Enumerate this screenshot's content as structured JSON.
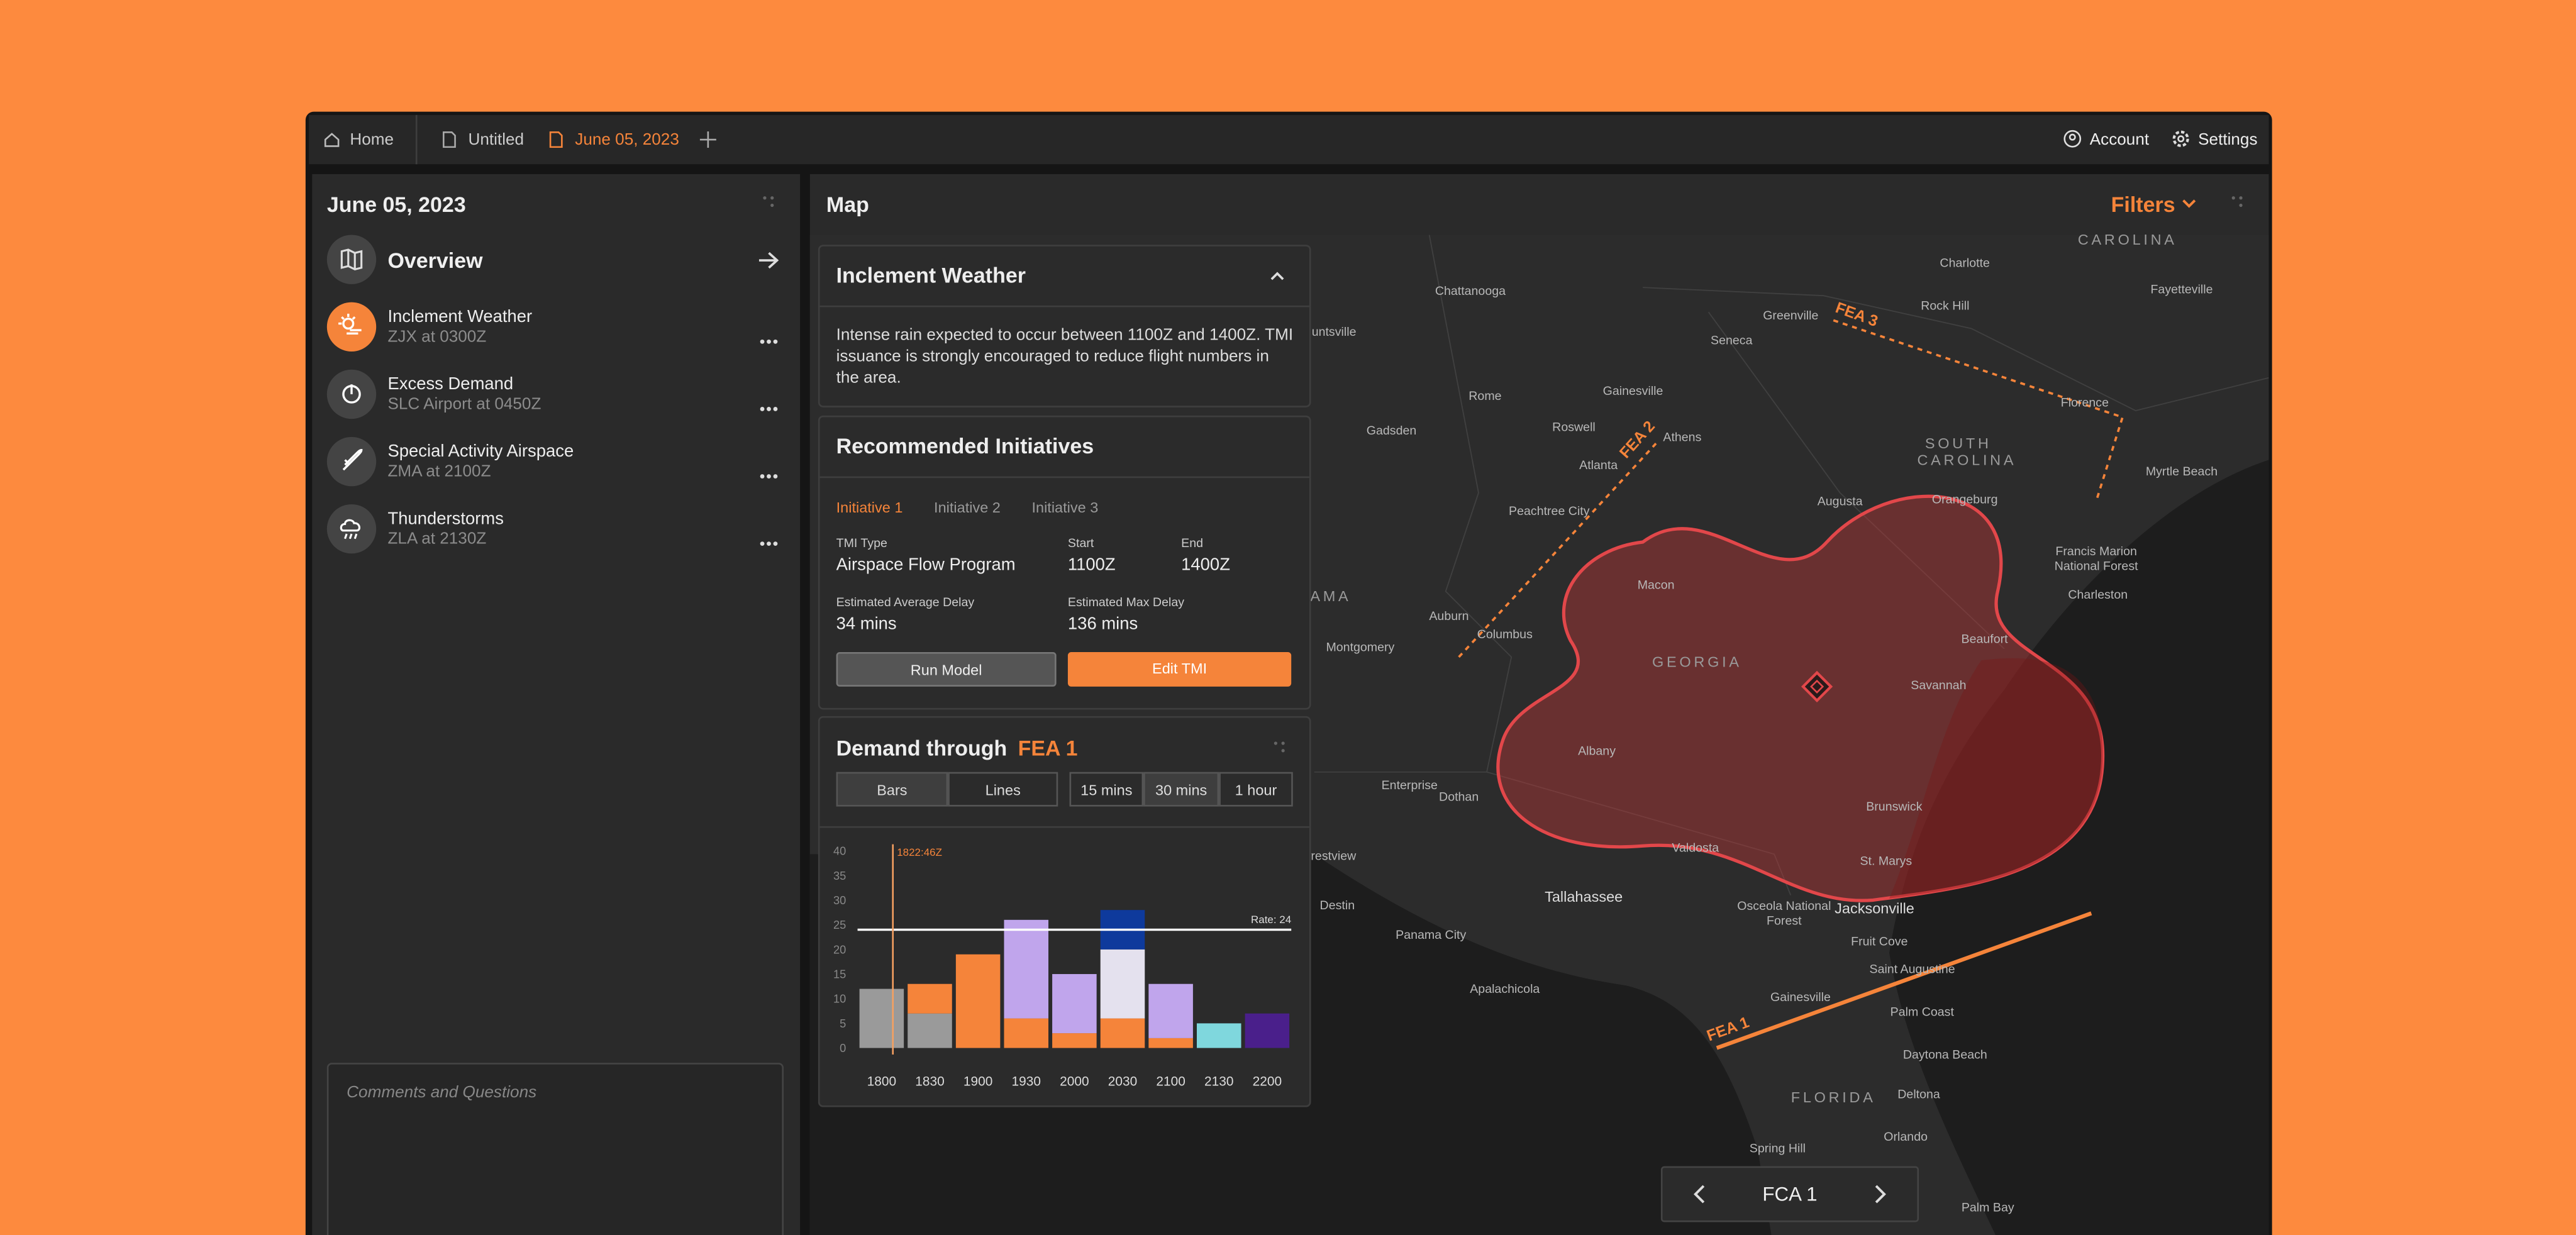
{
  "tabs": {
    "home": "Home",
    "items": [
      "Untitled",
      "June 05, 2023"
    ],
    "account": "Account",
    "settings": "Settings"
  },
  "sidebar": {
    "title": "June 05, 2023",
    "overview": "Overview",
    "alerts": [
      {
        "title": "Inclement Weather",
        "subtitle": "ZJX at 0300Z"
      },
      {
        "title": "Excess Demand",
        "subtitle": "SLC Airport at 0450Z"
      },
      {
        "title": "Special Activity Airspace",
        "subtitle": "ZMA at 2100Z"
      },
      {
        "title": "Thunderstorms",
        "subtitle": "ZLA at 2130Z"
      }
    ],
    "comments_placeholder": "Comments and Questions"
  },
  "map": {
    "title": "Map",
    "filters": "Filters",
    "state_labels": [
      "CAROLINA",
      "SOUTH CAROLINA",
      "AMA",
      "GEORGIA",
      "FLORIDA"
    ],
    "labels": [
      "Charlotte",
      "Chattanooga",
      "Fayetteville",
      "Rock Hill",
      "Greenville",
      "untsville",
      "Seneca",
      "Rome",
      "Gainesville",
      "Florence",
      "Gadsden",
      "Roswell",
      "Athens",
      "Atlanta",
      "Myrtle Beach",
      "Augusta",
      "Orangeburg",
      "Peachtree City",
      "Francis Marion National Forest",
      "Macon",
      "Charleston",
      "Auburn",
      "Columbus",
      "Montgomery",
      "Beaufort",
      "Savannah",
      "Albany",
      "Enterprise",
      "Dothan",
      "Brunswick",
      "Valdosta",
      "St. Marys",
      "Crestview",
      "Tallahassee",
      "Destin",
      "Jacksonville",
      "Osceola National Forest",
      "Panama City",
      "Fruit Cove",
      "Saint Augustine",
      "Apalachicola",
      "Gainesville",
      "Palm Coast",
      "Daytona Beach",
      "Deltona",
      "Orlando",
      "Spring Hill",
      "Palm Bay"
    ],
    "fea_labels": [
      "FEA 1",
      "FEA 2",
      "FEA 3"
    ],
    "nav": "FCA 1"
  },
  "weather_card": {
    "title": "Inclement Weather",
    "body": "Intense rain expected to occur between 1100Z and 1400Z. TMI issuance is strongly encouraged to reduce flight numbers in the area."
  },
  "initiatives": {
    "title": "Recommended Initiatives",
    "tabs": [
      "Initiative 1",
      "Initiative 2",
      "Initiative 3"
    ],
    "fields": [
      {
        "label": "TMI Type",
        "value": "Airspace Flow Program"
      },
      {
        "label": "Start",
        "value": "1100Z"
      },
      {
        "label": "End",
        "value": "1400Z"
      },
      {
        "label": "Estimated Average Delay",
        "value": "34 mins"
      },
      {
        "label": "Estimated Max Delay",
        "value": "136 mins"
      }
    ],
    "buttons": [
      "Run Model",
      "Edit TMI"
    ]
  },
  "demand": {
    "title": "Demand through",
    "title_highlight": "FEA 1",
    "view_options": [
      "Bars",
      "Lines"
    ],
    "interval_options": [
      "15 mins",
      "30 mins",
      "1 hour"
    ],
    "marker_label": "1822:46Z"
  },
  "chart_data": {
    "type": "bar",
    "stacked": true,
    "categories": [
      "1800",
      "1830",
      "1900",
      "1930",
      "2000",
      "2030",
      "2100",
      "2130",
      "2200"
    ],
    "series": [
      {
        "color": "#9a9a9a",
        "values": [
          12,
          7,
          0,
          0,
          0,
          0,
          0,
          0,
          0
        ]
      },
      {
        "color": "#f5843a",
        "values": [
          0,
          6,
          19,
          6,
          3,
          6,
          2,
          0,
          0
        ]
      },
      {
        "color": "#c0a5ec",
        "values": [
          0,
          0,
          0,
          20,
          12,
          0,
          11,
          0,
          0
        ]
      },
      {
        "color": "#e4e1ee",
        "values": [
          0,
          0,
          0,
          0,
          0,
          14,
          0,
          0,
          0
        ]
      },
      {
        "color": "#0e3a9c",
        "values": [
          0,
          0,
          0,
          0,
          0,
          8,
          0,
          0,
          0
        ]
      },
      {
        "color": "#7fd7dd",
        "values": [
          0,
          0,
          0,
          0,
          0,
          0,
          0,
          5,
          0
        ]
      },
      {
        "color": "#4a1f8b",
        "values": [
          0,
          0,
          0,
          0,
          0,
          0,
          0,
          0,
          7
        ]
      }
    ],
    "ylim": [
      0,
      40
    ],
    "yticks": [
      0,
      5,
      10,
      15,
      20,
      25,
      30,
      35,
      40
    ],
    "rate_line": {
      "value": 24,
      "label": "Rate: 24"
    }
  }
}
